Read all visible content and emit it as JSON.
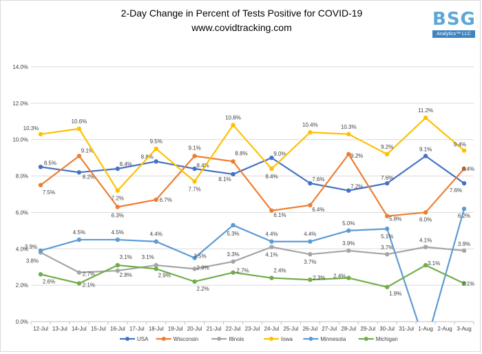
{
  "header": {
    "title": "2-Day Change in Percent of Tests Positive for COVID-19",
    "subtitle": "www.covidtracking.com"
  },
  "logo": {
    "mark": "BSG",
    "sub": "Analytics™ LLC"
  },
  "chart_data": {
    "type": "line",
    "title": "2-Day Change in Percent of Tests Positive for COVID-19",
    "subtitle": "www.covidtracking.com",
    "xlabel": "",
    "ylabel": "",
    "ylim": [
      0,
      14
    ],
    "yticks": [
      "0.0%",
      "2.0%",
      "4.0%",
      "6.0%",
      "8.0%",
      "10.0%",
      "12.0%",
      "14.0%"
    ],
    "grid": true,
    "legend": "bottom",
    "categories": [
      "12-Jul",
      "13-Jul",
      "14-Jul",
      "15-Jul",
      "16-Jul",
      "17-Jul",
      "18-Jul",
      "19-Jul",
      "20-Jul",
      "21-Jul",
      "22-Jul",
      "23-Jul",
      "24-Jul",
      "25-Jul",
      "26-Jul",
      "27-Jul",
      "28-Jul",
      "29-Jul",
      "30-Jul",
      "31-Jul",
      "1-Aug",
      "2-Aug",
      "3-Aug"
    ],
    "series": [
      {
        "name": "USA",
        "color": "#4472c4",
        "x": [
          "12-Jul",
          "14-Jul",
          "16-Jul",
          "18-Jul",
          "20-Jul",
          "22-Jul",
          "24-Jul",
          "26-Jul",
          "28-Jul",
          "30-Jul",
          "1-Aug",
          "3-Aug"
        ],
        "values": [
          8.5,
          8.2,
          8.4,
          8.8,
          8.4,
          8.1,
          9.0,
          7.6,
          7.2,
          7.6,
          9.1,
          7.6
        ],
        "labels": [
          "8.5%",
          "8.2%",
          "8.4%",
          "8.8%",
          "8.4%",
          "8.1%",
          "9.0%",
          "7.6%",
          "7.2%",
          "7.6%",
          "9.1%",
          "7.6%"
        ]
      },
      {
        "name": "Wisconsin",
        "color": "#ed7d31",
        "x": [
          "12-Jul",
          "14-Jul",
          "16-Jul",
          "18-Jul",
          "20-Jul",
          "22-Jul",
          "24-Jul",
          "26-Jul",
          "28-Jul",
          "30-Jul",
          "1-Aug",
          "3-Aug"
        ],
        "values": [
          7.5,
          9.1,
          6.3,
          6.7,
          9.1,
          8.8,
          6.1,
          6.4,
          9.2,
          5.8,
          6.0,
          8.4
        ],
        "labels": [
          "7.5%",
          "9.1%",
          "6.3%",
          "6.7%",
          "9.1%",
          "8.8%",
          "6.1%",
          "6.4%",
          "9.2%",
          "5.8%",
          "6.0%",
          "8.4%"
        ]
      },
      {
        "name": "Illinois",
        "color": "#a5a5a5",
        "x": [
          "12-Jul",
          "14-Jul",
          "16-Jul",
          "18-Jul",
          "20-Jul",
          "22-Jul",
          "24-Jul",
          "26-Jul",
          "28-Jul",
          "30-Jul",
          "1-Aug",
          "3-Aug"
        ],
        "values": [
          3.8,
          2.7,
          2.8,
          3.1,
          2.9,
          3.3,
          4.1,
          3.7,
          3.9,
          3.7,
          4.1,
          3.9
        ],
        "labels": [
          "3.8%",
          "2.7%",
          "2.8%",
          "3.1%",
          "2.9%",
          "3.3%",
          "4.1%",
          "3.7%",
          "3.9%",
          "3.7%",
          "4.1%",
          "3.9%"
        ]
      },
      {
        "name": "Iowa",
        "color": "#ffc000",
        "x": [
          "12-Jul",
          "14-Jul",
          "16-Jul",
          "18-Jul",
          "20-Jul",
          "22-Jul",
          "24-Jul",
          "26-Jul",
          "28-Jul",
          "30-Jul",
          "1-Aug",
          "3-Aug"
        ],
        "values": [
          10.3,
          10.6,
          7.2,
          9.5,
          7.7,
          10.8,
          8.4,
          10.4,
          10.3,
          9.2,
          11.2,
          9.4
        ],
        "labels": [
          "10.3%",
          "10.6%",
          "7.2%",
          "9.5%",
          "7.7%",
          "10.8%",
          "8.4%",
          "10.4%",
          "10.3%",
          "9.2%",
          "11.2%",
          "9.4%"
        ]
      },
      {
        "name": "Minnesota",
        "color": "#5b9bd5",
        "x": [
          "12-Jul",
          "14-Jul",
          "16-Jul",
          "18-Jul",
          "20-Jul",
          "22-Jul",
          "24-Jul",
          "26-Jul",
          "28-Jul",
          "30-Jul",
          "1-Aug",
          "3-Aug"
        ],
        "values": [
          3.9,
          4.5,
          4.5,
          4.4,
          3.5,
          5.3,
          4.4,
          4.4,
          5.0,
          5.1,
          -1.3,
          6.2
        ],
        "labels": [
          "3.9%",
          "4.5%",
          "4.5%",
          "4.4%",
          "3.5%",
          "5.3%",
          "4.4%",
          "4.4%",
          "5.0%",
          "5.1%",
          "",
          "6.2%"
        ]
      },
      {
        "name": "Michigan",
        "color": "#70ad47",
        "x": [
          "12-Jul",
          "14-Jul",
          "16-Jul",
          "18-Jul",
          "20-Jul",
          "22-Jul",
          "24-Jul",
          "26-Jul",
          "28-Jul",
          "30-Jul",
          "1-Aug",
          "3-Aug"
        ],
        "values": [
          2.6,
          2.1,
          3.1,
          2.9,
          2.2,
          2.7,
          2.4,
          2.3,
          2.4,
          1.9,
          3.1,
          2.1
        ],
        "labels": [
          "2.6%",
          "2.1%",
          "3.1%",
          "2.9%",
          "2.2%",
          "2.7%",
          "2.4%",
          "2.3%",
          "2.4%",
          "1.9%",
          "3.1%",
          "2.1%"
        ]
      }
    ]
  }
}
